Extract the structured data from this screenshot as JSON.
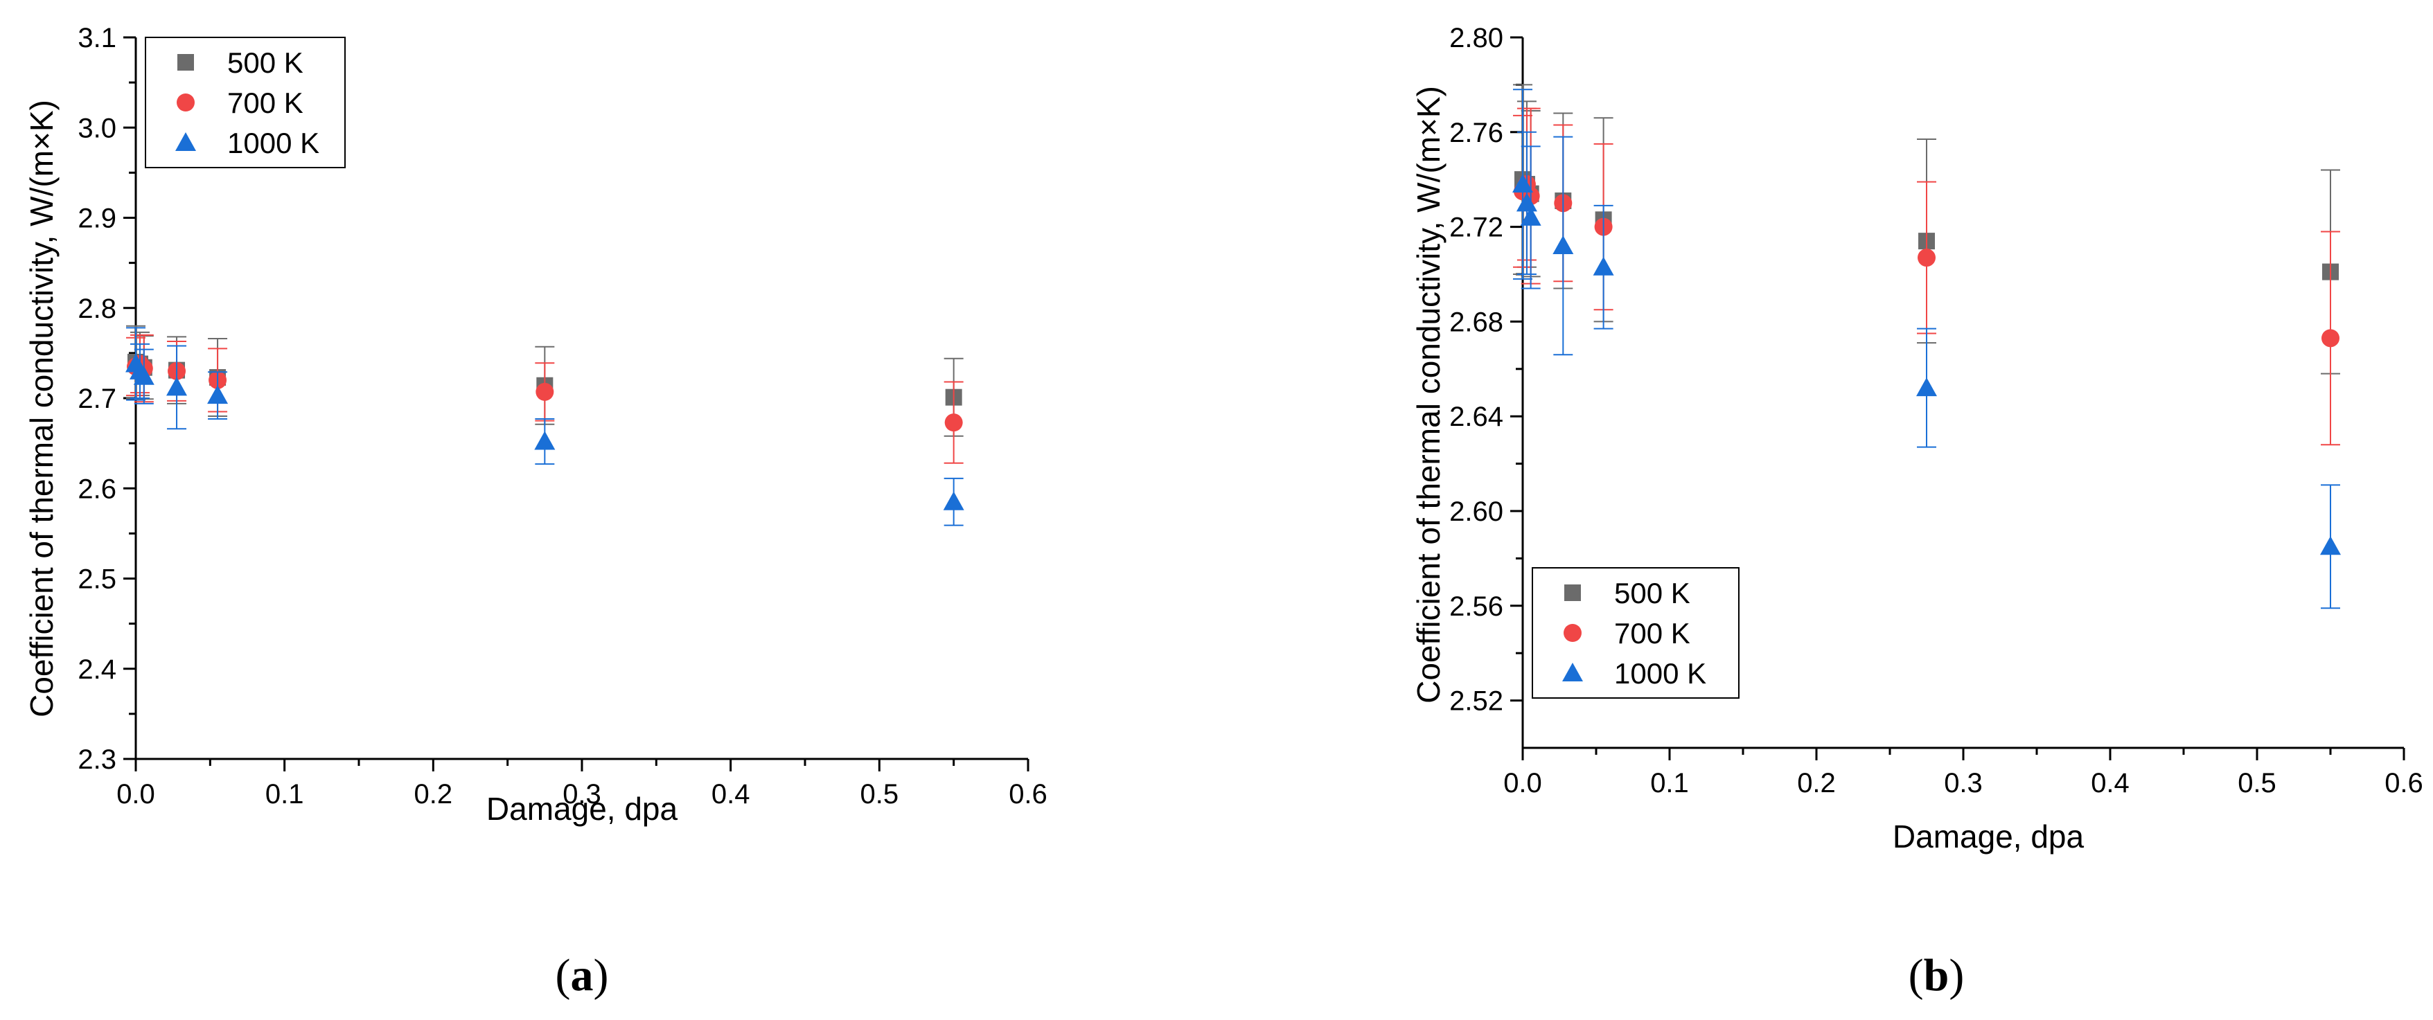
{
  "chart_data": [
    {
      "type": "scatter",
      "panel_label": "a",
      "xlabel": "Damage, dpa",
      "ylabel": "Coefficient of thermal conductivity, W/(m×K)",
      "xlim": [
        0,
        0.6
      ],
      "ylim": [
        2.3,
        3.1
      ],
      "xticks": [
        0.0,
        0.1,
        0.2,
        0.3,
        0.4,
        0.5,
        0.6
      ],
      "xtick_labels": [
        "0.0",
        "0.1",
        "0.2",
        "0.3",
        "0.4",
        "0.5",
        "0.6"
      ],
      "yticks": [
        2.3,
        2.4,
        2.5,
        2.6,
        2.7,
        2.8,
        2.9,
        3.0,
        3.1
      ],
      "ytick_labels": [
        "2.3",
        "2.4",
        "2.5",
        "2.6",
        "2.7",
        "2.8",
        "2.9",
        "3.0",
        "3.1"
      ],
      "legend_position": "top-left",
      "series": [
        {
          "name": "500 K",
          "marker": "square",
          "color": "#6b6b6b",
          "x": [
            0.0,
            0.0028,
            0.0055,
            0.0275,
            0.055,
            0.275,
            0.55
          ],
          "y": [
            2.74,
            2.738,
            2.734,
            2.731,
            2.723,
            2.714,
            2.701
          ],
          "err": [
            0.04,
            0.035,
            0.035,
            0.037,
            0.043,
            0.043,
            0.043
          ]
        },
        {
          "name": "700 K",
          "marker": "circle",
          "color": "#f04646",
          "x": [
            0.0,
            0.0028,
            0.0055,
            0.0275,
            0.055,
            0.275,
            0.55
          ],
          "y": [
            2.735,
            2.738,
            2.733,
            2.73,
            2.72,
            2.707,
            2.673
          ],
          "err": [
            0.032,
            0.032,
            0.037,
            0.033,
            0.035,
            0.032,
            0.045
          ]
        },
        {
          "name": "1000 K",
          "marker": "triangle",
          "color": "#1a6fd6",
          "x": [
            0.0,
            0.0028,
            0.0055,
            0.0275,
            0.055,
            0.275,
            0.55
          ],
          "y": [
            2.738,
            2.73,
            2.724,
            2.712,
            2.703,
            2.652,
            2.585
          ],
          "err": [
            0.04,
            0.03,
            0.03,
            0.046,
            0.026,
            0.025,
            0.026
          ]
        }
      ]
    },
    {
      "type": "scatter",
      "panel_label": "b",
      "xlabel": "Damage, dpa",
      "ylabel": "Coefficient of thermal conductivity, W/(m×K)",
      "xlim": [
        0,
        0.6
      ],
      "ylim": [
        2.5,
        2.8
      ],
      "xticks": [
        0.0,
        0.1,
        0.2,
        0.3,
        0.4,
        0.5,
        0.6
      ],
      "xtick_labels": [
        "0.0",
        "0.1",
        "0.2",
        "0.3",
        "0.4",
        "0.5",
        "0.6"
      ],
      "yticks": [
        2.52,
        2.56,
        2.6,
        2.64,
        2.68,
        2.72,
        2.76,
        2.8
      ],
      "ytick_labels": [
        "2.52",
        "2.56",
        "2.60",
        "2.64",
        "2.68",
        "2.72",
        "2.76",
        "2.80"
      ],
      "legend_position": "bottom-left",
      "series": [
        {
          "name": "500 K",
          "marker": "square",
          "color": "#6b6b6b",
          "x": [
            0.0,
            0.0028,
            0.0055,
            0.0275,
            0.055,
            0.275,
            0.55
          ],
          "y": [
            2.74,
            2.738,
            2.734,
            2.731,
            2.723,
            2.714,
            2.701
          ],
          "err": [
            0.04,
            0.035,
            0.035,
            0.037,
            0.043,
            0.043,
            0.043
          ]
        },
        {
          "name": "700 K",
          "marker": "circle",
          "color": "#f04646",
          "x": [
            0.0,
            0.0028,
            0.0055,
            0.0275,
            0.055,
            0.275,
            0.55
          ],
          "y": [
            2.735,
            2.738,
            2.733,
            2.73,
            2.72,
            2.707,
            2.673
          ],
          "err": [
            0.032,
            0.032,
            0.037,
            0.033,
            0.035,
            0.032,
            0.045
          ]
        },
        {
          "name": "1000 K",
          "marker": "triangle",
          "color": "#1a6fd6",
          "x": [
            0.0,
            0.0028,
            0.0055,
            0.0275,
            0.055,
            0.275,
            0.55
          ],
          "y": [
            2.738,
            2.73,
            2.724,
            2.712,
            2.703,
            2.652,
            2.585
          ],
          "err": [
            0.04,
            0.03,
            0.03,
            0.046,
            0.026,
            0.025,
            0.026
          ]
        }
      ]
    }
  ]
}
